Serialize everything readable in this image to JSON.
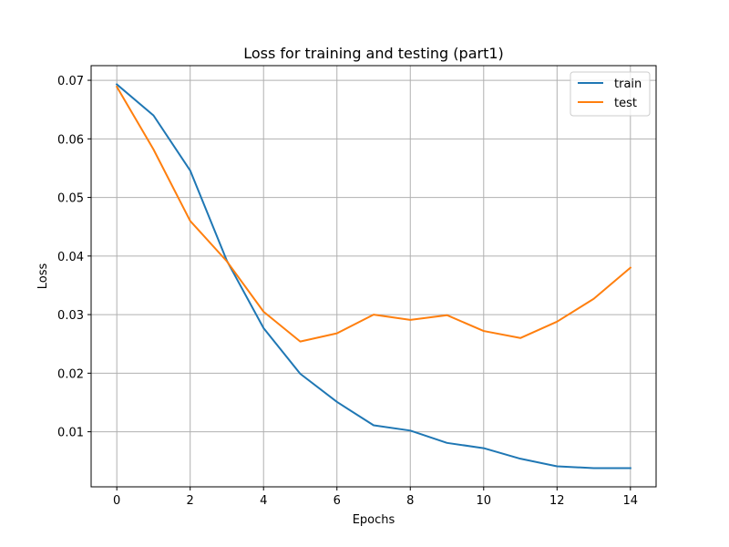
{
  "chart_data": {
    "type": "line",
    "title": "Loss for training and testing (part1)",
    "xlabel": "Epochs",
    "ylabel": "Loss",
    "x": [
      0,
      1,
      2,
      3,
      4,
      5,
      6,
      7,
      8,
      9,
      10,
      11,
      12,
      13,
      14
    ],
    "xlim": [
      -0.7,
      14.7
    ],
    "ylim": [
      0.0006,
      0.0725
    ],
    "xticks": [
      0,
      2,
      4,
      6,
      8,
      10,
      12,
      14
    ],
    "xtick_labels": [
      "0",
      "2",
      "4",
      "6",
      "8",
      "10",
      "12",
      "14"
    ],
    "yticks": [
      0.01,
      0.02,
      0.03,
      0.04,
      0.05,
      0.06,
      0.07
    ],
    "ytick_labels": [
      "0.01",
      "0.02",
      "0.03",
      "0.04",
      "0.05",
      "0.06",
      "0.07"
    ],
    "grid": true,
    "legend_position": "top-right",
    "series": [
      {
        "name": "train",
        "color": "#1f77b4",
        "values": [
          0.0693,
          0.064,
          0.0546,
          0.0392,
          0.0277,
          0.0199,
          0.0151,
          0.0111,
          0.0102,
          0.0081,
          0.0072,
          0.0054,
          0.0041,
          0.0038,
          0.0038
        ]
      },
      {
        "name": "test",
        "color": "#ff7f0e",
        "values": [
          0.0689,
          0.0582,
          0.046,
          0.0391,
          0.0305,
          0.0254,
          0.0268,
          0.03,
          0.0291,
          0.0299,
          0.0272,
          0.026,
          0.0288,
          0.0327,
          0.038
        ]
      }
    ]
  }
}
